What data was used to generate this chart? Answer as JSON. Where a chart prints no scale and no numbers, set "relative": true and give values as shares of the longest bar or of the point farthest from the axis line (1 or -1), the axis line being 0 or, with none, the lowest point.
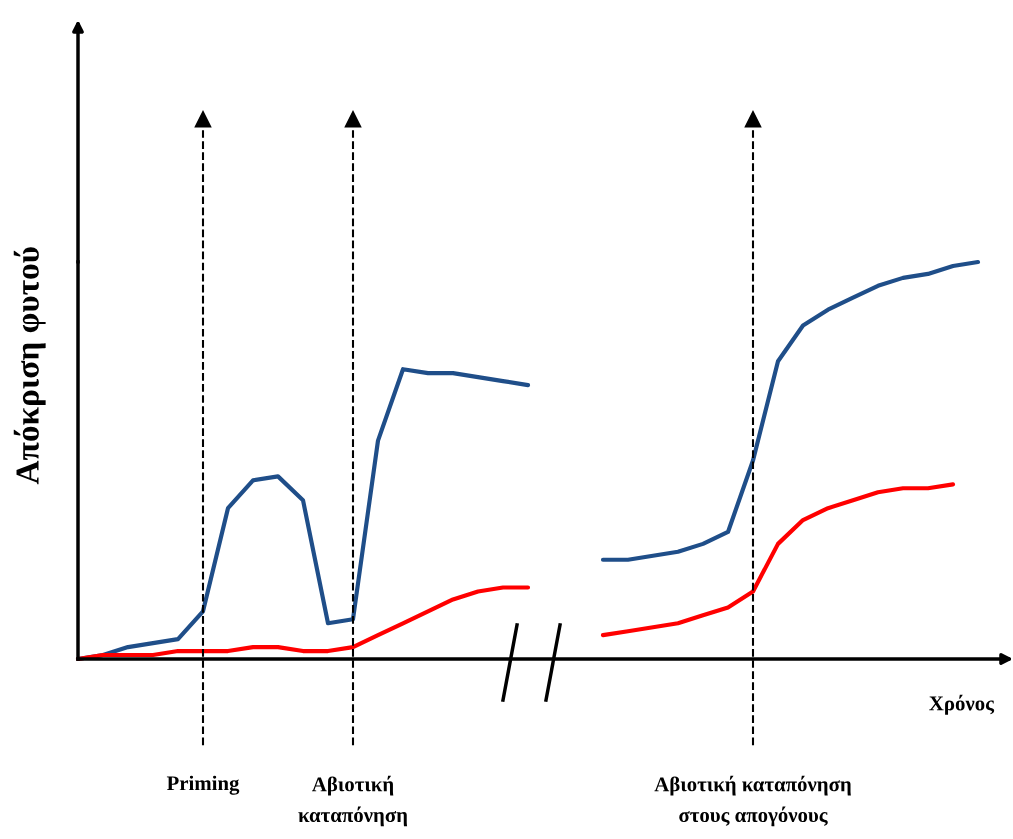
{
  "chart_data": {
    "type": "line",
    "relative": true,
    "ylabel": "Απόκριση φυτού",
    "categories": [
      null,
      null,
      null,
      null,
      null,
      "Priming",
      null,
      null,
      null,
      null,
      null,
      "Αβιοτική\nκαταπόνηση",
      null,
      null,
      null,
      null,
      null,
      null,
      null,
      null,
      null,
      null,
      null,
      null,
      null,
      null,
      null,
      "Αβιοτική καταπόνηση\nστους απογόνους",
      null,
      null,
      null,
      null,
      null,
      null,
      null,
      null,
      null,
      null
    ],
    "series": [
      {
        "color": "#1f4e89",
        "values": [
          0,
          0.01,
          0.03,
          0.04,
          0.05,
          0.12,
          0.38,
          0.45,
          0.46,
          0.4,
          0.09,
          0.1,
          0.55,
          0.73,
          0.72,
          0.72,
          0.71,
          0.7,
          0.69,
          null,
          null,
          0.25,
          0.25,
          0.26,
          0.27,
          0.29,
          0.32,
          0.5,
          0.75,
          0.84,
          0.88,
          0.91,
          0.94,
          0.96,
          0.97,
          0.99,
          1,
          null
        ]
      },
      {
        "color": "#ff0000",
        "values": [
          0,
          0.01,
          0.01,
          0.01,
          0.02,
          0.02,
          0.02,
          0.03,
          0.03,
          0.02,
          0.02,
          0.03,
          0.06,
          0.09,
          0.12,
          0.15,
          0.17,
          0.18,
          0.18,
          null,
          null,
          0.06,
          0.07,
          0.08,
          0.09,
          0.11,
          0.13,
          0.17,
          0.29,
          0.35,
          0.38,
          0.4,
          0.42,
          0.43,
          0.43,
          0.44,
          null,
          null
        ]
      }
    ],
    "ref_lines": [
      {
        "axis": "x",
        "value": "Priming",
        "color": "#000000",
        "line_style": "dashed"
      },
      {
        "axis": "x",
        "value": "Αβιοτική\nκαταπόνηση",
        "color": "#000000",
        "line_style": "dashed"
      },
      {
        "axis": "x",
        "value": "Αβιοτική καταπόνηση\nστους απογόνους",
        "color": "#000000",
        "line_style": "dashed"
      }
    ],
    "annotations": [
      "Χρόνος"
    ]
  }
}
